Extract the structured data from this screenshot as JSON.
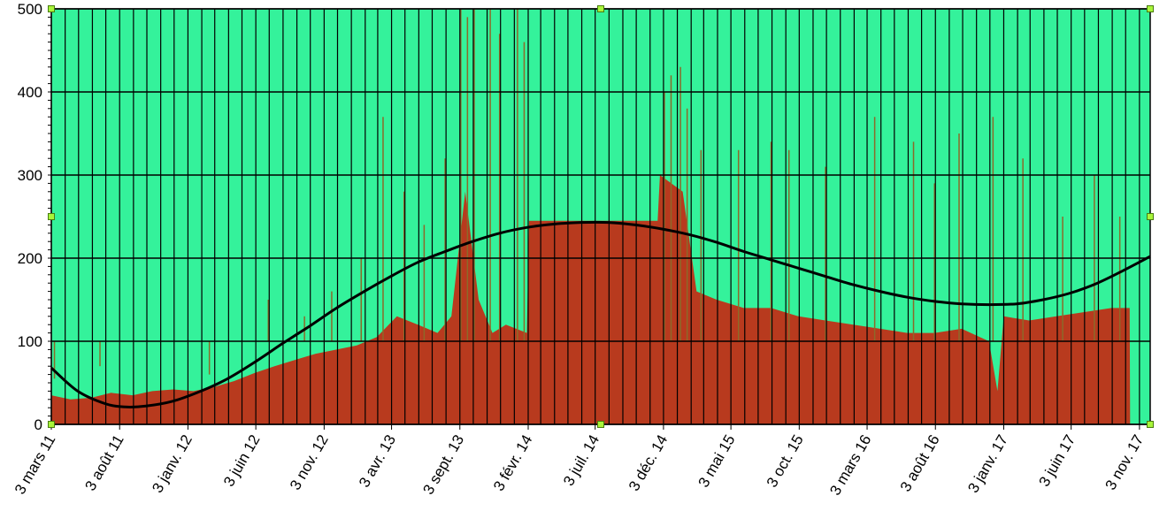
{
  "chart_data": {
    "type": "area",
    "title": "",
    "xlabel": "",
    "ylabel": "",
    "ylim": [
      0,
      500
    ],
    "xlim": [
      "2011-03-03",
      "2017-11-27"
    ],
    "y_ticks": [
      0,
      100,
      200,
      300,
      400,
      500
    ],
    "x_ticks": [
      {
        "date": "2011-03-03",
        "label": "3 mars 11"
      },
      {
        "date": "2011-08-03",
        "label": "3 août 11"
      },
      {
        "date": "2012-01-03",
        "label": "3 janv. 12"
      },
      {
        "date": "2012-06-03",
        "label": "3 juin 12"
      },
      {
        "date": "2012-11-03",
        "label": "3 nov. 12"
      },
      {
        "date": "2013-04-03",
        "label": "3 avr. 13"
      },
      {
        "date": "2013-09-03",
        "label": "3 sept. 13"
      },
      {
        "date": "2014-02-03",
        "label": "3 févr. 14"
      },
      {
        "date": "2014-07-03",
        "label": "3 juil. 14"
      },
      {
        "date": "2014-12-03",
        "label": "3 déc. 14"
      },
      {
        "date": "2015-05-03",
        "label": "3 mai 15"
      },
      {
        "date": "2015-10-03",
        "label": "3 oct. 15"
      },
      {
        "date": "2016-03-03",
        "label": "3 mars 16"
      },
      {
        "date": "2016-08-03",
        "label": "3 août 16"
      },
      {
        "date": "2017-01-03",
        "label": "3 janv. 17"
      },
      {
        "date": "2017-06-03",
        "label": "3 juin 17"
      },
      {
        "date": "2017-11-03",
        "label": "3 nov. 17"
      }
    ],
    "grid": true,
    "series": [
      {
        "type": "area",
        "color": "#b83a1e",
        "points": [
          [
            "2011-03-03",
            35
          ],
          [
            "2011-04-15",
            30
          ],
          [
            "2011-06-01",
            32
          ],
          [
            "2011-07-15",
            38
          ],
          [
            "2011-09-01",
            35
          ],
          [
            "2011-10-15",
            40
          ],
          [
            "2011-12-01",
            42
          ],
          [
            "2012-01-15",
            40
          ],
          [
            "2012-03-01",
            45
          ],
          [
            "2012-04-15",
            52
          ],
          [
            "2012-06-01",
            62
          ],
          [
            "2012-07-15",
            70
          ],
          [
            "2012-09-01",
            78
          ],
          [
            "2012-10-15",
            85
          ],
          [
            "2012-12-01",
            90
          ],
          [
            "2013-01-15",
            95
          ],
          [
            "2013-03-01",
            105
          ],
          [
            "2013-04-15",
            130
          ],
          [
            "2013-06-01",
            120
          ],
          [
            "2013-07-15",
            110
          ],
          [
            "2013-08-15",
            130
          ],
          [
            "2013-09-15",
            280
          ],
          [
            "2013-10-15",
            150
          ],
          [
            "2013-11-15",
            110
          ],
          [
            "2013-12-15",
            120
          ],
          [
            "2014-01-31",
            110
          ],
          [
            "2014-02-05",
            245
          ],
          [
            "2014-11-20",
            245
          ],
          [
            "2014-11-25",
            300
          ],
          [
            "2015-01-15",
            280
          ],
          [
            "2015-02-15",
            160
          ],
          [
            "2015-04-01",
            150
          ],
          [
            "2015-06-01",
            140
          ],
          [
            "2015-08-01",
            140
          ],
          [
            "2015-10-01",
            130
          ],
          [
            "2015-12-01",
            125
          ],
          [
            "2016-02-01",
            120
          ],
          [
            "2016-04-01",
            115
          ],
          [
            "2016-06-01",
            110
          ],
          [
            "2016-08-01",
            110
          ],
          [
            "2016-10-01",
            115
          ],
          [
            "2016-12-01",
            100
          ],
          [
            "2016-12-20",
            40
          ],
          [
            "2017-01-03",
            130
          ],
          [
            "2017-03-01",
            125
          ],
          [
            "2017-05-01",
            130
          ],
          [
            "2017-07-01",
            135
          ],
          [
            "2017-09-01",
            140
          ],
          [
            "2017-10-12",
            140
          ],
          [
            "2017-10-13",
            0
          ]
        ],
        "spikes": [
          [
            "2011-03-10",
            55
          ],
          [
            "2011-06-20",
            70
          ],
          [
            "2012-02-20",
            60
          ],
          [
            "2012-05-15",
            100
          ],
          [
            "2012-07-01",
            150
          ],
          [
            "2012-09-20",
            130
          ],
          [
            "2012-11-20",
            160
          ],
          [
            "2013-01-25",
            200
          ],
          [
            "2013-03-15",
            370
          ],
          [
            "2013-05-01",
            280
          ],
          [
            "2013-06-15",
            240
          ],
          [
            "2013-08-01",
            320
          ],
          [
            "2013-09-05",
            500
          ],
          [
            "2013-09-20",
            490
          ],
          [
            "2013-10-05",
            500
          ],
          [
            "2013-11-10",
            500
          ],
          [
            "2013-12-01",
            470
          ],
          [
            "2014-01-10",
            500
          ],
          [
            "2014-01-25",
            460
          ],
          [
            "2014-12-05",
            400
          ],
          [
            "2014-12-20",
            420
          ],
          [
            "2015-01-10",
            430
          ],
          [
            "2015-01-25",
            380
          ],
          [
            "2015-02-25",
            330
          ],
          [
            "2015-05-20",
            330
          ],
          [
            "2015-08-01",
            340
          ],
          [
            "2015-09-10",
            330
          ],
          [
            "2015-12-01",
            310
          ],
          [
            "2016-03-20",
            370
          ],
          [
            "2016-06-15",
            340
          ],
          [
            "2016-08-01",
            290
          ],
          [
            "2016-09-25",
            350
          ],
          [
            "2016-12-10",
            370
          ],
          [
            "2017-02-15",
            320
          ],
          [
            "2017-05-15",
            250
          ],
          [
            "2017-07-25",
            300
          ],
          [
            "2017-09-20",
            250
          ]
        ]
      },
      {
        "type": "line",
        "color": "#000000",
        "points": [
          [
            "2011-03-03",
            68
          ],
          [
            "2011-05-01",
            40
          ],
          [
            "2011-07-01",
            25
          ],
          [
            "2011-08-15",
            21
          ],
          [
            "2011-10-01",
            22
          ],
          [
            "2011-12-01",
            28
          ],
          [
            "2012-02-01",
            40
          ],
          [
            "2012-04-01",
            55
          ],
          [
            "2012-06-01",
            75
          ],
          [
            "2012-08-01",
            97
          ],
          [
            "2012-10-01",
            118
          ],
          [
            "2012-12-01",
            140
          ],
          [
            "2013-02-01",
            160
          ],
          [
            "2013-04-01",
            178
          ],
          [
            "2013-06-01",
            195
          ],
          [
            "2013-08-01",
            208
          ],
          [
            "2013-10-01",
            220
          ],
          [
            "2013-12-01",
            230
          ],
          [
            "2014-02-01",
            237
          ],
          [
            "2014-04-01",
            241
          ],
          [
            "2014-06-01",
            243
          ],
          [
            "2014-08-01",
            243
          ],
          [
            "2014-10-01",
            240
          ],
          [
            "2014-12-01",
            235
          ],
          [
            "2015-02-01",
            228
          ],
          [
            "2015-04-01",
            219
          ],
          [
            "2015-06-01",
            208
          ],
          [
            "2015-08-01",
            198
          ],
          [
            "2015-10-01",
            188
          ],
          [
            "2015-12-01",
            178
          ],
          [
            "2016-02-01",
            168
          ],
          [
            "2016-04-01",
            160
          ],
          [
            "2016-06-01",
            153
          ],
          [
            "2016-08-01",
            148
          ],
          [
            "2016-10-01",
            145
          ],
          [
            "2016-12-01",
            144
          ],
          [
            "2017-02-01",
            145
          ],
          [
            "2017-04-01",
            150
          ],
          [
            "2017-06-01",
            158
          ],
          [
            "2017-08-01",
            170
          ],
          [
            "2017-10-01",
            186
          ],
          [
            "2017-11-27",
            202
          ]
        ]
      }
    ],
    "colors": {
      "plot_background": "#34f29b",
      "grid": "#000000",
      "fill": "#b83a1e",
      "spike": "#8c6a2a",
      "trend": "#000000",
      "handle": "#a8f53a"
    }
  }
}
